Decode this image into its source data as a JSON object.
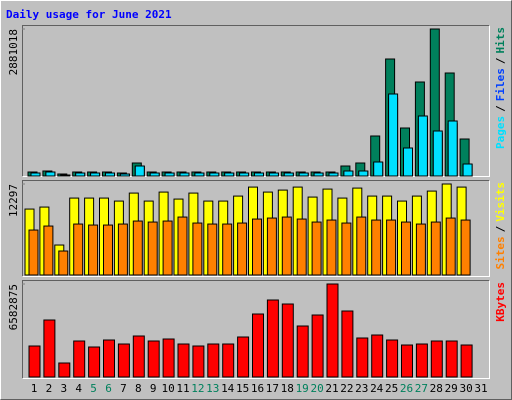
{
  "chart_data": [
    {
      "type": "bar",
      "title": "Daily usage for June 2021",
      "ylim": [
        0,
        2881018
      ],
      "yticks": [
        2881018
      ],
      "legend_separator": "/",
      "series": [
        {
          "name": "Hits",
          "color": "#00805c",
          "values": [
            78400,
            98000,
            39200,
            78400,
            78400,
            78400,
            58800,
            254800,
            78400,
            78400,
            78400,
            78400,
            78400,
            78400,
            78400,
            78400,
            78400,
            78400,
            78400,
            78400,
            78400,
            196000,
            254800,
            784000,
            2293100,
            940800,
            1842300,
            2881018,
            2018700,
            725200,
            0
          ]
        },
        {
          "name": "Files",
          "color": "#0040ff",
          "values": [
            55000,
            74000,
            18000,
            55000,
            55000,
            55000,
            37000,
            186000,
            55000,
            55000,
            55000,
            55000,
            55000,
            55000,
            55000,
            55000,
            55000,
            55000,
            55000,
            55000,
            55000,
            93000,
            93000,
            260000,
            1527000,
            521000,
            1117000,
            838000,
            1024000,
            223000,
            0
          ]
        },
        {
          "name": "Pages",
          "color": "#00e0ff",
          "values": [
            58800,
            78400,
            19600,
            58800,
            58800,
            58800,
            39200,
            196000,
            58800,
            58800,
            58800,
            58800,
            58800,
            58800,
            58800,
            58800,
            58800,
            58800,
            58800,
            58800,
            58800,
            98000,
            98000,
            274400,
            1607100,
            548800,
            1176000,
            882000,
            1078000,
            235200,
            0
          ]
        }
      ]
    },
    {
      "type": "bar",
      "ylim": [
        0,
        12297
      ],
      "yticks": [
        12297
      ],
      "legend_separator": "/",
      "series": [
        {
          "name": "Visits",
          "color": "#ffff00",
          "values": [
            8910,
            9180,
            4050,
            10395,
            10395,
            10395,
            9990,
            11070,
            9990,
            11205,
            10260,
            11070,
            9990,
            9990,
            10665,
            11880,
            11205,
            11475,
            11880,
            10530,
            11610,
            10395,
            11745,
            10665,
            10665,
            9990,
            10665,
            11340,
            12297,
            11880,
            0
          ]
        },
        {
          "name": "Sites",
          "color": "#ff8000",
          "values": [
            6075,
            6615,
            3240,
            6885,
            6750,
            6750,
            6885,
            7290,
            7155,
            7290,
            7830,
            7020,
            6885,
            6885,
            7020,
            7560,
            7695,
            7830,
            7560,
            7155,
            7425,
            7020,
            7830,
            7425,
            7425,
            7155,
            6885,
            7155,
            7695,
            7425,
            0
          ]
        }
      ]
    },
    {
      "type": "bar",
      "ylim": [
        0,
        6582875
      ],
      "yticks": [
        6582875
      ],
      "categories": [
        "1",
        "2",
        "3",
        "4",
        "5",
        "6",
        "7",
        "8",
        "9",
        "10",
        "11",
        "12",
        "13",
        "14",
        "15",
        "16",
        "17",
        "18",
        "19",
        "20",
        "21",
        "22",
        "23",
        "24",
        "25",
        "26",
        "27",
        "28",
        "29",
        "30",
        "31"
      ],
      "category_colors": [
        "#000000",
        "#000000",
        "#000000",
        "#000000",
        "#00805c",
        "#00805c",
        "#000000",
        "#000000",
        "#000000",
        "#000000",
        "#000000",
        "#00805c",
        "#00805c",
        "#000000",
        "#000000",
        "#000000",
        "#000000",
        "#000000",
        "#00805c",
        "#00805c",
        "#000000",
        "#000000",
        "#000000",
        "#000000",
        "#000000",
        "#00805c",
        "#00805c",
        "#000000",
        "#000000",
        "#000000",
        "#000000"
      ],
      "series": [
        {
          "name": "KBytes",
          "color": "#ff0000",
          "values": [
            2194300,
            4034700,
            991000,
            2548200,
            2123500,
            2619000,
            2335900,
            2902100,
            2548200,
            2689800,
            2335900,
            2194300,
            2335900,
            2335900,
            2831400,
            4459400,
            5450400,
            5167200,
            3610000,
            4388600,
            6582875,
            4671700,
            2760600,
            2972900,
            2619000,
            2265100,
            2335900,
            2548200,
            2548200,
            2265100,
            0
          ]
        }
      ]
    }
  ]
}
